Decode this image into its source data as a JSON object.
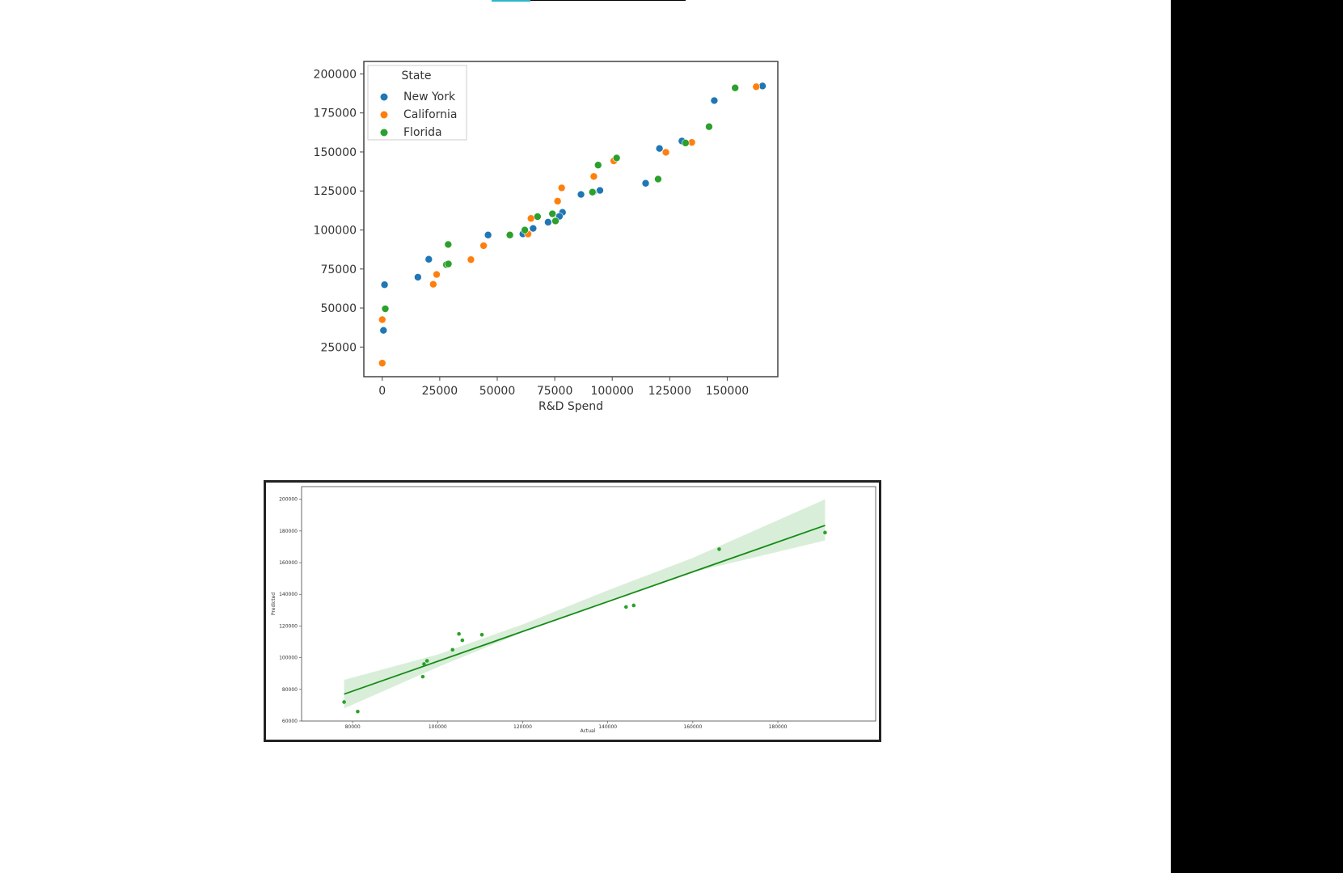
{
  "page": {
    "accent_color": "#2ab7c6",
    "right_band_color": "#000000"
  },
  "chart_data": [
    {
      "type": "scatter",
      "xlabel": "R&D Spend",
      "ylabel": "",
      "xlim": [
        -8000,
        172000
      ],
      "ylim": [
        6000,
        208000
      ],
      "xticks": [
        0,
        25000,
        50000,
        75000,
        100000,
        125000,
        150000
      ],
      "yticks": [
        25000,
        50000,
        75000,
        100000,
        125000,
        150000,
        175000,
        200000
      ],
      "grid": false,
      "legend": {
        "title": "State",
        "position": "top-left"
      },
      "series": [
        {
          "name": "New York",
          "color": "#1f77b4",
          "points": [
            [
              165350,
              192261
            ],
            [
              144372,
              182902
            ],
            [
              130298,
              156991
            ],
            [
              120543,
              152212
            ],
            [
              114524,
              129917
            ],
            [
              94657,
              125370
            ],
            [
              91749,
              124267
            ],
            [
              86419,
              122777
            ],
            [
              78389,
              111313
            ],
            [
              77044,
              108734
            ],
            [
              72108,
              105008
            ],
            [
              65605,
              101004
            ],
            [
              61136,
              97484
            ],
            [
              46014,
              96779
            ],
            [
              20230,
              81229
            ],
            [
              15506,
              69759
            ],
            [
              1000,
              64926
            ],
            [
              542,
              35673
            ]
          ]
        },
        {
          "name": "California",
          "color": "#ff7f0e",
          "points": [
            [
              162598,
              191792
            ],
            [
              134615,
              156123
            ],
            [
              123335,
              149760
            ],
            [
              100672,
              144259
            ],
            [
              91992,
              134308
            ],
            [
              78013,
              126993
            ],
            [
              76254,
              118474
            ],
            [
              64665,
              107404
            ],
            [
              63409,
              97428
            ],
            [
              44070,
              89949
            ],
            [
              38558,
              81006
            ],
            [
              23641,
              71499
            ],
            [
              22178,
              65200
            ],
            [
              0,
              42560
            ],
            [
              0,
              14681
            ]
          ]
        },
        {
          "name": "Florida",
          "color": "#2ca02c",
          "points": [
            [
              153442,
              191050
            ],
            [
              142107,
              166188
            ],
            [
              131877,
              155753
            ],
            [
              119944,
              132602
            ],
            [
              101913,
              146122
            ],
            [
              93864,
              141586
            ],
            [
              91391,
              124267
            ],
            [
              75329,
              105734
            ],
            [
              73995,
              110352
            ],
            [
              67533,
              108552
            ],
            [
              61994,
              99937
            ],
            [
              55494,
              96779
            ],
            [
              28664,
              90708
            ],
            [
              27893,
              77799
            ],
            [
              28754,
              78240
            ],
            [
              1315,
              49491
            ]
          ]
        }
      ]
    },
    {
      "type": "scatter",
      "xlabel": "Actual",
      "ylabel": "Predicted",
      "xlim": [
        68000,
        203000
      ],
      "ylim": [
        60000,
        208000
      ],
      "xticks": [
        80000,
        100000,
        120000,
        140000,
        160000,
        180000
      ],
      "yticks": [
        60000,
        80000,
        100000,
        120000,
        140000,
        160000,
        180000,
        200000
      ],
      "grid": false,
      "color": "#2ca02c",
      "points": [
        [
          78000,
          72000
        ],
        [
          81200,
          66000
        ],
        [
          96500,
          88000
        ],
        [
          96800,
          96000
        ],
        [
          97500,
          98000
        ],
        [
          103500,
          105000
        ],
        [
          105000,
          115000
        ],
        [
          105800,
          111000
        ],
        [
          110400,
          114500
        ],
        [
          144300,
          132000
        ],
        [
          146100,
          133000
        ],
        [
          166200,
          168500
        ],
        [
          191100,
          179000
        ]
      ],
      "regression_line": [
        [
          78000,
          77000
        ],
        [
          191100,
          183500
        ]
      ],
      "confidence_band": {
        "x": [
          78000,
          100000,
          120000,
          140000,
          160000,
          191100
        ],
        "upper": [
          86000,
          102000,
          121000,
          142500,
          163000,
          200000
        ],
        "lower": [
          68000,
          94000,
          116000,
          136000,
          154000,
          174000
        ]
      }
    }
  ]
}
